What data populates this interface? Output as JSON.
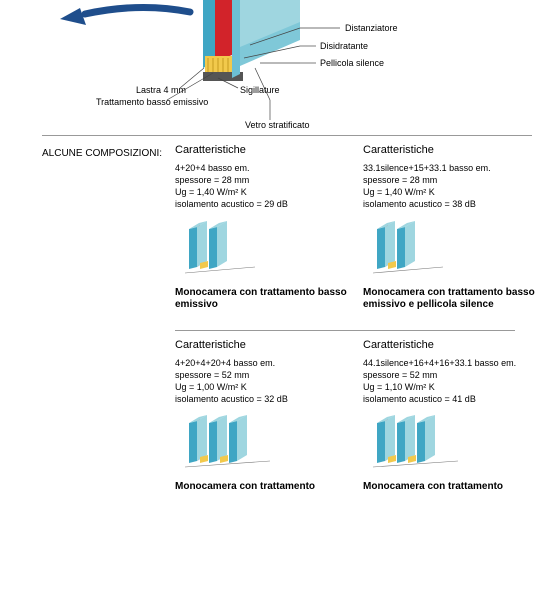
{
  "colors": {
    "glass_light": "#9fd6e0",
    "glass_dark": "#3fa6c4",
    "red": "#d2232a",
    "yellow": "#f2c94c",
    "arrow": "#1f4e8c",
    "text": "#000000",
    "line": "#444444",
    "hr": "#999999"
  },
  "top_diagram": {
    "labels": {
      "distanziatore": "Distanziatore",
      "disidratante": "Disidratante",
      "pellicola_silence": "Pellicola silence",
      "vetro_stratificato": "Vetro stratificato",
      "sigillature": "Sigillature",
      "lastra_4mm": "Lastra 4 mm",
      "trattamento_basso_emissivo": "Trattamento basso emissivo"
    }
  },
  "section_label": "ALCUNE COMPOSIZIONI:",
  "cards": [
    {
      "heading": "Caratteristiche",
      "spec1": "4+20+4 basso em.",
      "spec2": "spessore = 28 mm",
      "spec3": "Ug = 1,40 W/m² K",
      "spec4": "isolamento acustico = 29 dB",
      "caption": "Monocamera con trattamento basso emissivo",
      "panes": 2
    },
    {
      "heading": "Caratteristiche",
      "spec1": "33.1silence+15+33.1 basso em.",
      "spec2": "spessore = 28 mm",
      "spec3": "Ug = 1,40 W/m² K",
      "spec4": "isolamento acustico = 38 dB",
      "caption": "Monocamera con trattamento basso emissivo e pellicola silence",
      "panes": 2
    },
    {
      "heading": "Caratteristiche",
      "spec1": "4+20+4+20+4 basso em.",
      "spec2": "spessore = 52 mm",
      "spec3": "Ug = 1,00 W/m² K",
      "spec4": "isolamento acustico = 32 dB",
      "caption": "Monocamera con trattamento",
      "panes": 3
    },
    {
      "heading": "Caratteristiche",
      "spec1": "44.1silence+16+4+16+33.1 basso em.",
      "spec2": "spessore = 52 mm",
      "spec3": "Ug = 1,10 W/m² K",
      "spec4": "isolamento acustico = 41 dB",
      "caption": "Monocamera con trattamento",
      "panes": 3
    }
  ]
}
